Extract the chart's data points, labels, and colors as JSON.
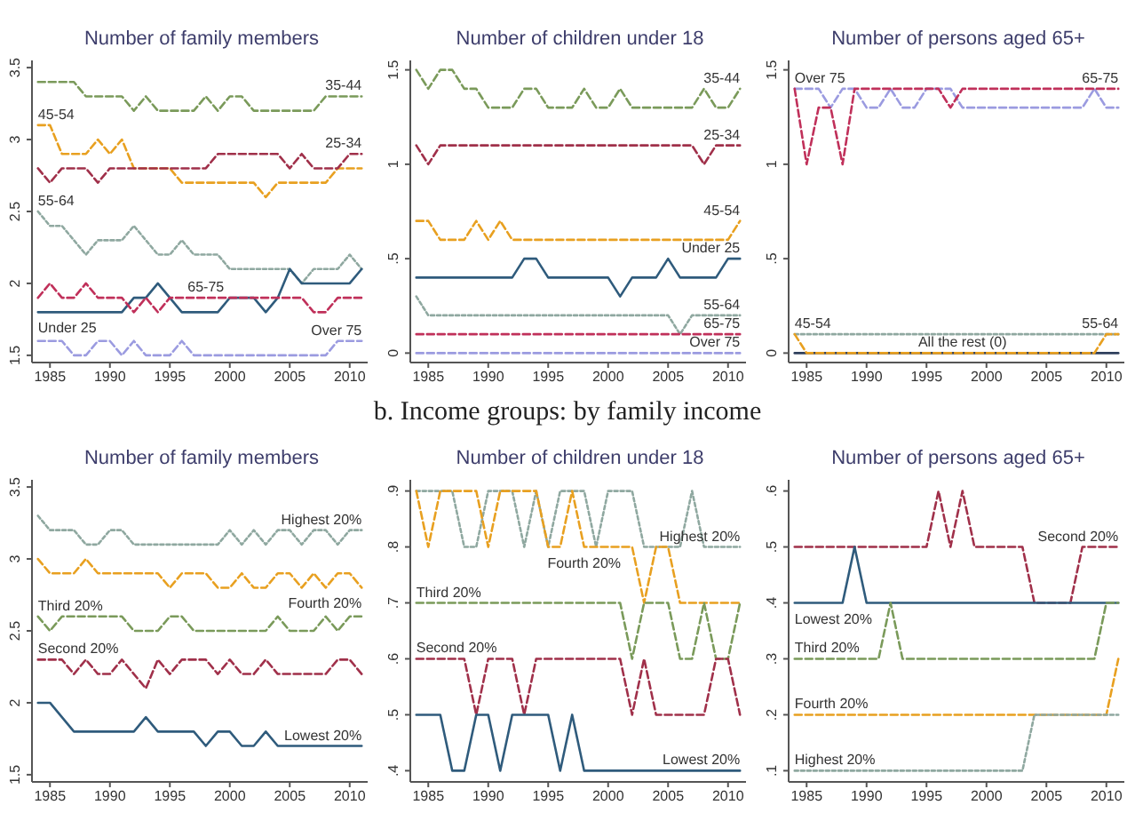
{
  "chart_data": [
    {
      "type": "line",
      "title": "Number of family members",
      "marker": "none",
      "xlim": [
        1983.5,
        2011.5
      ],
      "xticks": [
        1985,
        1990,
        1995,
        2000,
        2005,
        2010
      ],
      "ylim": [
        1.45,
        3.55
      ],
      "yticks": [
        1.5,
        2,
        2.5,
        3,
        3.5
      ],
      "x": [
        1984,
        1985,
        1986,
        1987,
        1988,
        1989,
        1990,
        1991,
        1992,
        1993,
        1994,
        1995,
        1996,
        1997,
        1998,
        1999,
        2000,
        2001,
        2002,
        2003,
        2004,
        2005,
        2006,
        2007,
        2008,
        2009,
        2010,
        2011
      ],
      "series": [
        {
          "name": "35-44",
          "color": "#7a9a5a",
          "line_style": "dashed",
          "values": [
            3.4,
            3.4,
            3.4,
            3.4,
            3.3,
            3.3,
            3.3,
            3.3,
            3.2,
            3.3,
            3.2,
            3.2,
            3.2,
            3.2,
            3.3,
            3.2,
            3.3,
            3.3,
            3.2,
            3.2,
            3.2,
            3.2,
            3.2,
            3.2,
            3.3,
            3.3,
            3.3,
            3.3
          ]
        },
        {
          "name": "45-54",
          "color": "#e8a020",
          "line_style": "dashed",
          "values": [
            3.1,
            3.1,
            2.9,
            2.9,
            2.9,
            3.0,
            2.9,
            3.0,
            2.8,
            2.8,
            2.8,
            2.8,
            2.7,
            2.7,
            2.7,
            2.7,
            2.7,
            2.7,
            2.7,
            2.6,
            2.7,
            2.7,
            2.7,
            2.7,
            2.7,
            2.8,
            2.8,
            2.8
          ]
        },
        {
          "name": "25-34",
          "color": "#a0304a",
          "line_style": "dashed",
          "values": [
            2.8,
            2.7,
            2.8,
            2.8,
            2.8,
            2.7,
            2.8,
            2.8,
            2.8,
            2.8,
            2.8,
            2.8,
            2.8,
            2.8,
            2.8,
            2.9,
            2.9,
            2.9,
            2.9,
            2.9,
            2.9,
            2.8,
            2.9,
            2.8,
            2.8,
            2.8,
            2.9,
            2.9
          ]
        },
        {
          "name": "55-64",
          "color": "#8fa8a0",
          "line_style": "dotted",
          "values": [
            2.5,
            2.4,
            2.4,
            2.3,
            2.2,
            2.3,
            2.3,
            2.3,
            2.4,
            2.3,
            2.2,
            2.2,
            2.3,
            2.2,
            2.2,
            2.2,
            2.1,
            2.1,
            2.1,
            2.1,
            2.1,
            2.1,
            2.0,
            2.1,
            2.1,
            2.1,
            2.2,
            2.1
          ]
        },
        {
          "name": "Under 25",
          "color": "#2f5b7c",
          "line_style": "solid",
          "values": [
            1.8,
            1.8,
            1.8,
            1.8,
            1.8,
            1.8,
            1.8,
            1.8,
            1.9,
            1.9,
            2.0,
            1.9,
            1.8,
            1.8,
            1.8,
            1.8,
            1.9,
            1.9,
            1.9,
            1.8,
            1.9,
            2.1,
            2.0,
            2.0,
            2.0,
            2.0,
            2.0,
            2.1
          ]
        },
        {
          "name": "65-75",
          "color": "#c0305a",
          "line_style": "dashed",
          "values": [
            1.9,
            2.0,
            1.9,
            1.9,
            2.0,
            1.9,
            1.9,
            1.9,
            1.8,
            1.9,
            1.8,
            1.9,
            1.9,
            1.9,
            1.9,
            1.9,
            1.9,
            1.9,
            1.9,
            1.9,
            1.9,
            1.9,
            1.9,
            1.8,
            1.8,
            1.9,
            1.9,
            1.9
          ]
        },
        {
          "name": "Over 75",
          "color": "#9b9be0",
          "line_style": "dashed",
          "values": [
            1.6,
            1.6,
            1.6,
            1.5,
            1.5,
            1.6,
            1.6,
            1.5,
            1.6,
            1.5,
            1.5,
            1.5,
            1.6,
            1.5,
            1.5,
            1.5,
            1.5,
            1.5,
            1.5,
            1.5,
            1.5,
            1.5,
            1.5,
            1.5,
            1.5,
            1.6,
            1.6,
            1.6
          ]
        }
      ]
    },
    {
      "type": "line",
      "title": "Number of children under 18",
      "marker": "none",
      "xlim": [
        1983.5,
        2011.5
      ],
      "xticks": [
        1985,
        1990,
        1995,
        2000,
        2005,
        2010
      ],
      "ylim": [
        -0.05,
        1.55
      ],
      "yticks": [
        0,
        {
          "value": 0.5,
          "label": ".5"
        },
        1,
        1.5
      ],
      "x": [
        1984,
        1985,
        1986,
        1987,
        1988,
        1989,
        1990,
        1991,
        1992,
        1993,
        1994,
        1995,
        1996,
        1997,
        1998,
        1999,
        2000,
        2001,
        2002,
        2003,
        2004,
        2005,
        2006,
        2007,
        2008,
        2009,
        2010,
        2011
      ],
      "series": [
        {
          "name": "35-44",
          "color": "#7a9a5a",
          "line_style": "dashed",
          "values": [
            1.5,
            1.4,
            1.5,
            1.5,
            1.4,
            1.4,
            1.3,
            1.3,
            1.3,
            1.4,
            1.4,
            1.3,
            1.3,
            1.3,
            1.4,
            1.3,
            1.3,
            1.4,
            1.3,
            1.3,
            1.3,
            1.3,
            1.3,
            1.3,
            1.4,
            1.3,
            1.3,
            1.4
          ]
        },
        {
          "name": "25-34",
          "color": "#a0304a",
          "line_style": "dashed",
          "values": [
            1.1,
            1.0,
            1.1,
            1.1,
            1.1,
            1.1,
            1.1,
            1.1,
            1.1,
            1.1,
            1.1,
            1.1,
            1.1,
            1.1,
            1.1,
            1.1,
            1.1,
            1.1,
            1.1,
            1.1,
            1.1,
            1.1,
            1.1,
            1.1,
            1.0,
            1.1,
            1.1,
            1.1
          ]
        },
        {
          "name": "45-54",
          "color": "#e8a020",
          "line_style": "dashed",
          "values": [
            0.7,
            0.7,
            0.6,
            0.6,
            0.6,
            0.7,
            0.6,
            0.7,
            0.6,
            0.6,
            0.6,
            0.6,
            0.6,
            0.6,
            0.6,
            0.6,
            0.6,
            0.6,
            0.6,
            0.6,
            0.6,
            0.6,
            0.6,
            0.6,
            0.6,
            0.6,
            0.6,
            0.7
          ]
        },
        {
          "name": "Under 25",
          "color": "#2f5b7c",
          "line_style": "solid",
          "values": [
            0.4,
            0.4,
            0.4,
            0.4,
            0.4,
            0.4,
            0.4,
            0.4,
            0.4,
            0.5,
            0.5,
            0.4,
            0.4,
            0.4,
            0.4,
            0.4,
            0.4,
            0.3,
            0.4,
            0.4,
            0.4,
            0.5,
            0.4,
            0.4,
            0.4,
            0.4,
            0.5,
            0.5
          ]
        },
        {
          "name": "55-64",
          "color": "#8fa8a0",
          "line_style": "dotted",
          "values": [
            0.3,
            0.2,
            0.2,
            0.2,
            0.2,
            0.2,
            0.2,
            0.2,
            0.2,
            0.2,
            0.2,
            0.2,
            0.2,
            0.2,
            0.2,
            0.2,
            0.2,
            0.2,
            0.2,
            0.2,
            0.2,
            0.2,
            0.1,
            0.2,
            0.2,
            0.2,
            0.2,
            0.2
          ]
        },
        {
          "name": "65-75",
          "color": "#c0305a",
          "line_style": "dashed",
          "values": [
            0.1,
            0.1,
            0.1,
            0.1,
            0.1,
            0.1,
            0.1,
            0.1,
            0.1,
            0.1,
            0.1,
            0.1,
            0.1,
            0.1,
            0.1,
            0.1,
            0.1,
            0.1,
            0.1,
            0.1,
            0.1,
            0.1,
            0.1,
            0.1,
            0.1,
            0.1,
            0.1,
            0.1
          ]
        },
        {
          "name": "Over 75",
          "color": "#9b9be0",
          "line_style": "dashed",
          "values": [
            0,
            0,
            0,
            0,
            0,
            0,
            0,
            0,
            0,
            0,
            0,
            0,
            0,
            0,
            0,
            0,
            0,
            0,
            0,
            0,
            0,
            0,
            0,
            0,
            0,
            0,
            0,
            0
          ]
        }
      ]
    },
    {
      "type": "line",
      "title": "Number of persons aged 65+",
      "marker": "none",
      "xlim": [
        1983.5,
        2011.5
      ],
      "xticks": [
        1985,
        1990,
        1995,
        2000,
        2005,
        2010
      ],
      "ylim": [
        -0.05,
        1.55
      ],
      "yticks": [
        0,
        {
          "value": 0.5,
          "label": ".5"
        },
        1,
        1.5
      ],
      "x": [
        1984,
        1985,
        1986,
        1987,
        1988,
        1989,
        1990,
        1991,
        1992,
        1993,
        1994,
        1995,
        1996,
        1997,
        1998,
        1999,
        2000,
        2001,
        2002,
        2003,
        2004,
        2005,
        2006,
        2007,
        2008,
        2009,
        2010,
        2011
      ],
      "series": [
        {
          "name": "All the rest (0)",
          "color": "#2f3f5c",
          "line_style": "solid",
          "values": [
            0,
            0,
            0,
            0,
            0,
            0,
            0,
            0,
            0,
            0,
            0,
            0,
            0,
            0,
            0,
            0,
            0,
            0,
            0,
            0,
            0,
            0,
            0,
            0,
            0,
            0,
            0,
            0
          ]
        },
        {
          "name": "Over 75",
          "color": "#9b9be0",
          "line_style": "dashed",
          "values": [
            1.4,
            1.4,
            1.4,
            1.3,
            1.4,
            1.4,
            1.3,
            1.3,
            1.4,
            1.3,
            1.3,
            1.4,
            1.4,
            1.4,
            1.3,
            1.3,
            1.3,
            1.3,
            1.3,
            1.3,
            1.3,
            1.3,
            1.3,
            1.3,
            1.3,
            1.4,
            1.3,
            1.3
          ]
        },
        {
          "name": "65-75",
          "color": "#c0305a",
          "line_style": "dashed",
          "values": [
            1.4,
            1.0,
            1.3,
            1.3,
            1.0,
            1.4,
            1.4,
            1.4,
            1.4,
            1.4,
            1.4,
            1.4,
            1.4,
            1.3,
            1.4,
            1.4,
            1.4,
            1.4,
            1.4,
            1.4,
            1.4,
            1.4,
            1.4,
            1.4,
            1.4,
            1.4,
            1.4,
            1.4
          ]
        },
        {
          "name": "55-64",
          "color": "#8fa8a0",
          "line_style": "dotted",
          "values": [
            0.1,
            0.1,
            0.1,
            0.1,
            0.1,
            0.1,
            0.1,
            0.1,
            0.1,
            0.1,
            0.1,
            0.1,
            0.1,
            0.1,
            0.1,
            0.1,
            0.1,
            0.1,
            0.1,
            0.1,
            0.1,
            0.1,
            0.1,
            0.1,
            0.1,
            0.1,
            0.1,
            0.1
          ]
        },
        {
          "name": "45-54",
          "color": "#e8a020",
          "line_style": "dashed",
          "values": [
            0.1,
            0,
            0,
            0,
            0,
            0,
            0,
            0,
            0,
            0,
            0,
            0,
            0,
            0,
            0,
            0,
            0,
            0,
            0,
            0,
            0,
            0,
            0,
            0,
            0,
            0,
            0.1,
            0.1
          ]
        }
      ]
    },
    {
      "type": "line",
      "title": "Number of family members",
      "marker": "none",
      "xlim": [
        1983.5,
        2011.5
      ],
      "xticks": [
        1985,
        1990,
        1995,
        2000,
        2005,
        2010
      ],
      "ylim": [
        1.45,
        3.55
      ],
      "yticks": [
        1.5,
        2,
        2.5,
        3,
        3.5
      ],
      "x": [
        1984,
        1985,
        1986,
        1987,
        1988,
        1989,
        1990,
        1991,
        1992,
        1993,
        1994,
        1995,
        1996,
        1997,
        1998,
        1999,
        2000,
        2001,
        2002,
        2003,
        2004,
        2005,
        2006,
        2007,
        2008,
        2009,
        2010,
        2011
      ],
      "series": [
        {
          "name": "Highest 20%",
          "color": "#8fa8a0",
          "line_style": "dotted",
          "values": [
            3.3,
            3.2,
            3.2,
            3.2,
            3.1,
            3.1,
            3.2,
            3.2,
            3.1,
            3.1,
            3.1,
            3.1,
            3.1,
            3.1,
            3.1,
            3.1,
            3.2,
            3.1,
            3.2,
            3.1,
            3.2,
            3.2,
            3.1,
            3.2,
            3.2,
            3.1,
            3.2,
            3.2
          ]
        },
        {
          "name": "Fourth 20%",
          "color": "#e8a020",
          "line_style": "dashed",
          "values": [
            3.0,
            2.9,
            2.9,
            2.9,
            3.0,
            2.9,
            2.9,
            2.9,
            2.9,
            2.9,
            2.9,
            2.8,
            2.9,
            2.9,
            2.9,
            2.8,
            2.8,
            2.9,
            2.8,
            2.8,
            2.9,
            2.9,
            2.8,
            2.9,
            2.8,
            2.9,
            2.9,
            2.8
          ]
        },
        {
          "name": "Third 20%",
          "color": "#7a9a5a",
          "line_style": "dashed",
          "values": [
            2.6,
            2.5,
            2.6,
            2.6,
            2.6,
            2.6,
            2.6,
            2.6,
            2.5,
            2.5,
            2.5,
            2.6,
            2.6,
            2.5,
            2.5,
            2.5,
            2.5,
            2.5,
            2.5,
            2.5,
            2.6,
            2.5,
            2.5,
            2.5,
            2.6,
            2.5,
            2.6,
            2.6
          ]
        },
        {
          "name": "Second 20%",
          "color": "#a0304a",
          "line_style": "dashed",
          "values": [
            2.3,
            2.3,
            2.3,
            2.2,
            2.3,
            2.2,
            2.2,
            2.3,
            2.2,
            2.1,
            2.3,
            2.2,
            2.3,
            2.3,
            2.3,
            2.2,
            2.3,
            2.2,
            2.2,
            2.3,
            2.2,
            2.2,
            2.2,
            2.2,
            2.2,
            2.3,
            2.3,
            2.2
          ]
        },
        {
          "name": "Lowest 20%",
          "color": "#2f5b7c",
          "line_style": "solid",
          "values": [
            2.0,
            2.0,
            1.9,
            1.8,
            1.8,
            1.8,
            1.8,
            1.8,
            1.8,
            1.9,
            1.8,
            1.8,
            1.8,
            1.8,
            1.7,
            1.8,
            1.8,
            1.7,
            1.7,
            1.8,
            1.7,
            1.7,
            1.7,
            1.7,
            1.7,
            1.7,
            1.7,
            1.7
          ]
        }
      ]
    },
    {
      "type": "line",
      "title": "Number of children under 18",
      "marker": "none",
      "xlim": [
        1983.5,
        2011.5
      ],
      "xticks": [
        1985,
        1990,
        1995,
        2000,
        2005,
        2010
      ],
      "ylim": [
        0.38,
        0.92
      ],
      "yticks": [
        {
          "value": 0.4,
          "label": ".4"
        },
        {
          "value": 0.5,
          "label": ".5"
        },
        {
          "value": 0.6,
          "label": ".6"
        },
        {
          "value": 0.7,
          "label": ".7"
        },
        {
          "value": 0.8,
          "label": ".8"
        },
        {
          "value": 0.9,
          "label": ".9"
        }
      ],
      "x": [
        1984,
        1985,
        1986,
        1987,
        1988,
        1989,
        1990,
        1991,
        1992,
        1993,
        1994,
        1995,
        1996,
        1997,
        1998,
        1999,
        2000,
        2001,
        2002,
        2003,
        2004,
        2005,
        2006,
        2007,
        2008,
        2009,
        2010,
        2011
      ],
      "series": [
        {
          "name": "Highest 20%",
          "color": "#8fa8a0",
          "line_style": "dotted",
          "values": [
            0.9,
            0.9,
            0.9,
            0.9,
            0.8,
            0.8,
            0.9,
            0.9,
            0.9,
            0.8,
            0.9,
            0.8,
            0.9,
            0.9,
            0.9,
            0.8,
            0.9,
            0.9,
            0.9,
            0.8,
            0.8,
            0.8,
            0.8,
            0.9,
            0.8,
            0.8,
            0.8,
            0.8
          ]
        },
        {
          "name": "Fourth 20%",
          "color": "#e8a020",
          "line_style": "dashed",
          "values": [
            0.9,
            0.8,
            0.9,
            0.9,
            0.9,
            0.9,
            0.8,
            0.9,
            0.9,
            0.9,
            0.9,
            0.8,
            0.8,
            0.9,
            0.8,
            0.8,
            0.8,
            0.8,
            0.8,
            0.7,
            0.8,
            0.8,
            0.7,
            0.7,
            0.7,
            0.7,
            0.7,
            0.7
          ]
        },
        {
          "name": "Third 20%",
          "color": "#7a9a5a",
          "line_style": "dashed",
          "values": [
            0.7,
            0.7,
            0.7,
            0.7,
            0.7,
            0.7,
            0.7,
            0.7,
            0.7,
            0.7,
            0.7,
            0.7,
            0.7,
            0.7,
            0.7,
            0.7,
            0.7,
            0.7,
            0.6,
            0.7,
            0.7,
            0.7,
            0.6,
            0.6,
            0.7,
            0.6,
            0.6,
            0.7
          ]
        },
        {
          "name": "Second 20%",
          "color": "#a0304a",
          "line_style": "dashed",
          "values": [
            0.6,
            0.6,
            0.6,
            0.6,
            0.6,
            0.5,
            0.6,
            0.6,
            0.6,
            0.5,
            0.6,
            0.6,
            0.6,
            0.6,
            0.6,
            0.6,
            0.6,
            0.6,
            0.5,
            0.6,
            0.5,
            0.5,
            0.5,
            0.5,
            0.5,
            0.6,
            0.6,
            0.5
          ]
        },
        {
          "name": "Lowest 20%",
          "color": "#2f5b7c",
          "line_style": "solid",
          "values": [
            0.5,
            0.5,
            0.5,
            0.4,
            0.4,
            0.5,
            0.5,
            0.4,
            0.5,
            0.5,
            0.5,
            0.5,
            0.4,
            0.5,
            0.4,
            0.4,
            0.4,
            0.4,
            0.4,
            0.4,
            0.4,
            0.4,
            0.4,
            0.4,
            0.4,
            0.4,
            0.4,
            0.4
          ]
        }
      ],
      "annotations": [
        "b. Income groups: by family income"
      ]
    },
    {
      "type": "line",
      "title": "Number of persons aged 65+",
      "marker": "none",
      "xlim": [
        1983.5,
        2011.5
      ],
      "xticks": [
        1985,
        1990,
        1995,
        2000,
        2005,
        2010
      ],
      "ylim": [
        0.08,
        0.62
      ],
      "yticks": [
        {
          "value": 0.1,
          "label": ".1"
        },
        {
          "value": 0.2,
          "label": ".2"
        },
        {
          "value": 0.3,
          "label": ".3"
        },
        {
          "value": 0.4,
          "label": ".4"
        },
        {
          "value": 0.5,
          "label": ".5"
        },
        {
          "value": 0.6,
          "label": ".6"
        }
      ],
      "x": [
        1984,
        1985,
        1986,
        1987,
        1988,
        1989,
        1990,
        1991,
        1992,
        1993,
        1994,
        1995,
        1996,
        1997,
        1998,
        1999,
        2000,
        2001,
        2002,
        2003,
        2004,
        2005,
        2006,
        2007,
        2008,
        2009,
        2010,
        2011
      ],
      "series": [
        {
          "name": "Second 20%",
          "color": "#a0304a",
          "line_style": "dashed",
          "values": [
            0.5,
            0.5,
            0.5,
            0.5,
            0.5,
            0.5,
            0.5,
            0.5,
            0.5,
            0.5,
            0.5,
            0.5,
            0.6,
            0.5,
            0.6,
            0.5,
            0.5,
            0.5,
            0.5,
            0.5,
            0.4,
            0.4,
            0.4,
            0.4,
            0.5,
            0.5,
            0.5,
            0.5
          ]
        },
        {
          "name": "Lowest 20%",
          "color": "#2f5b7c",
          "line_style": "solid",
          "values": [
            0.4,
            0.4,
            0.4,
            0.4,
            0.4,
            0.5,
            0.4,
            0.4,
            0.4,
            0.4,
            0.4,
            0.4,
            0.4,
            0.4,
            0.4,
            0.4,
            0.4,
            0.4,
            0.4,
            0.4,
            0.4,
            0.4,
            0.4,
            0.4,
            0.4,
            0.4,
            0.4,
            0.4
          ]
        },
        {
          "name": "Third 20%",
          "color": "#7a9a5a",
          "line_style": "dashed",
          "values": [
            0.3,
            0.3,
            0.3,
            0.3,
            0.3,
            0.3,
            0.3,
            0.3,
            0.4,
            0.3,
            0.3,
            0.3,
            0.3,
            0.3,
            0.3,
            0.3,
            0.3,
            0.3,
            0.3,
            0.3,
            0.3,
            0.3,
            0.3,
            0.3,
            0.3,
            0.3,
            0.4,
            0.4
          ]
        },
        {
          "name": "Fourth 20%",
          "color": "#e8a020",
          "line_style": "dashed",
          "values": [
            0.2,
            0.2,
            0.2,
            0.2,
            0.2,
            0.2,
            0.2,
            0.2,
            0.2,
            0.2,
            0.2,
            0.2,
            0.2,
            0.2,
            0.2,
            0.2,
            0.2,
            0.2,
            0.2,
            0.2,
            0.2,
            0.2,
            0.2,
            0.2,
            0.2,
            0.2,
            0.2,
            0.3
          ]
        },
        {
          "name": "Highest 20%",
          "color": "#8fa8a0",
          "line_style": "dotted",
          "values": [
            0.1,
            0.1,
            0.1,
            0.1,
            0.1,
            0.1,
            0.1,
            0.1,
            0.1,
            0.1,
            0.1,
            0.1,
            0.1,
            0.1,
            0.1,
            0.1,
            0.1,
            0.1,
            0.1,
            0.1,
            0.2,
            0.2,
            0.2,
            0.2,
            0.2,
            0.2,
            0.2,
            0.2
          ]
        }
      ]
    }
  ]
}
